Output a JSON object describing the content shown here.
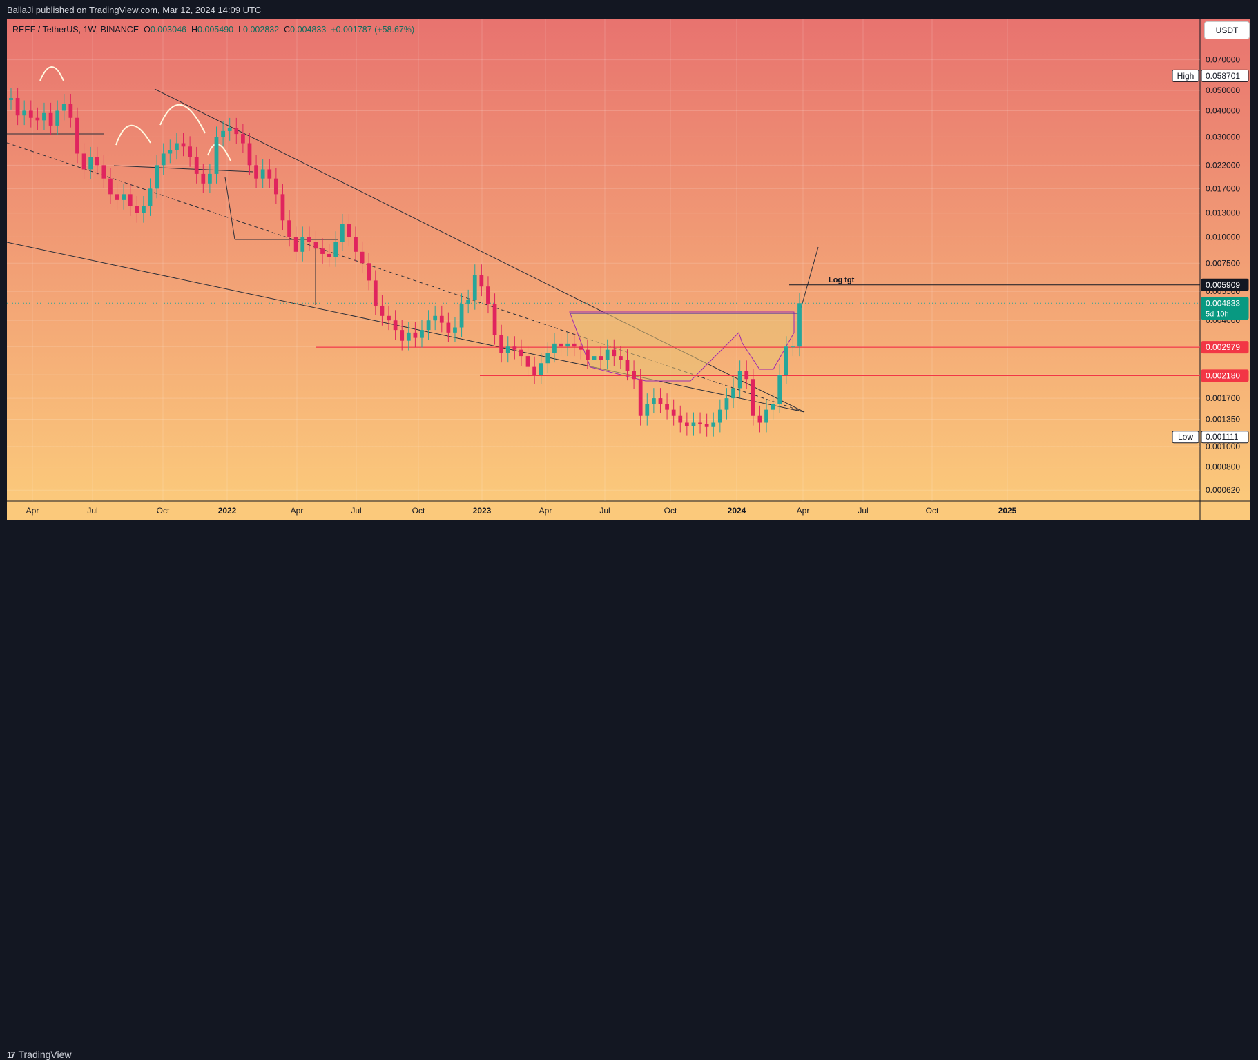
{
  "header": {
    "publisher": "BallaJi published on TradingView.com, Mar 12, 2024 14:09 UTC"
  },
  "symbol": {
    "name": "REEF / TetherUS, 1W, BINANCE",
    "o_label": "O",
    "o_value": "0.003046",
    "h_label": "H",
    "h_value": "0.005490",
    "l_label": "L",
    "l_value": "0.002832",
    "c_label": "C",
    "c_value": "0.004833",
    "change": "+0.001787 (+58.67%)"
  },
  "currency_button": "USDT",
  "footer": {
    "brand": "TradingView",
    "logo_icon": "tradingview-logo-icon"
  },
  "colors": {
    "bg_top": "#e8736f",
    "bg_bottom": "#fbc97b",
    "up": "#26a69a",
    "down": "#e0245e",
    "level_line": "#f23645",
    "cup_fill": "#e8c277",
    "cup_stroke": "#9c27b0"
  },
  "chart_data": {
    "type": "candlestick",
    "scale": "log",
    "ylim": [
      0.00055,
      0.11
    ],
    "y_ticks": [
      "0.070000",
      "0.050000",
      "0.040000",
      "0.030000",
      "0.022000",
      "0.017000",
      "0.013000",
      "0.010000",
      "0.007500",
      "0.005500",
      "0.004000",
      "0.003000",
      "0.002200",
      "0.001700",
      "0.001350",
      "0.001000",
      "0.000800",
      "0.000620"
    ],
    "x_ticks": [
      "Apr",
      "Jul",
      "Oct",
      "2022",
      "Apr",
      "Jul",
      "Oct",
      "2023",
      "Apr",
      "Jul",
      "Oct",
      "2024",
      "Apr",
      "Jul",
      "Oct",
      "2025"
    ],
    "price_labels": [
      {
        "label": "High",
        "value": "0.058701"
      },
      {
        "label": "",
        "value": "0.005909"
      },
      {
        "label": "",
        "value": "0.004833",
        "sub": "5d 10h"
      },
      {
        "label": "",
        "value": "0.002979"
      },
      {
        "label": "",
        "value": "0.002180"
      },
      {
        "label": "Low",
        "value": "0.001111"
      }
    ],
    "annotations": [
      "Log tgt"
    ],
    "levels": [
      0.002979,
      0.00218,
      0.005909
    ],
    "candles": [
      [
        0.045,
        0.046
      ],
      [
        0.046,
        0.038
      ],
      [
        0.038,
        0.04
      ],
      [
        0.04,
        0.037
      ],
      [
        0.037,
        0.036
      ],
      [
        0.036,
        0.039
      ],
      [
        0.039,
        0.034
      ],
      [
        0.034,
        0.04
      ],
      [
        0.04,
        0.043
      ],
      [
        0.043,
        0.037
      ],
      [
        0.037,
        0.025
      ],
      [
        0.025,
        0.021
      ],
      [
        0.021,
        0.024
      ],
      [
        0.024,
        0.022
      ],
      [
        0.022,
        0.019
      ],
      [
        0.019,
        0.016
      ],
      [
        0.016,
        0.015
      ],
      [
        0.015,
        0.016
      ],
      [
        0.016,
        0.014
      ],
      [
        0.014,
        0.013
      ],
      [
        0.013,
        0.014
      ],
      [
        0.014,
        0.017
      ],
      [
        0.017,
        0.022
      ],
      [
        0.022,
        0.025
      ],
      [
        0.025,
        0.026
      ],
      [
        0.026,
        0.028
      ],
      [
        0.028,
        0.027
      ],
      [
        0.027,
        0.024
      ],
      [
        0.024,
        0.02
      ],
      [
        0.02,
        0.018
      ],
      [
        0.018,
        0.02
      ],
      [
        0.02,
        0.03
      ],
      [
        0.03,
        0.032
      ],
      [
        0.032,
        0.033
      ],
      [
        0.033,
        0.031
      ],
      [
        0.031,
        0.028
      ],
      [
        0.028,
        0.022
      ],
      [
        0.022,
        0.019
      ],
      [
        0.019,
        0.021
      ],
      [
        0.021,
        0.019
      ],
      [
        0.019,
        0.016
      ],
      [
        0.016,
        0.012
      ],
      [
        0.012,
        0.01
      ],
      [
        0.01,
        0.0085
      ],
      [
        0.0085,
        0.01
      ],
      [
        0.01,
        0.0095
      ],
      [
        0.0095,
        0.0088
      ],
      [
        0.0088,
        0.0083
      ],
      [
        0.0083,
        0.008
      ],
      [
        0.008,
        0.0095
      ],
      [
        0.0095,
        0.0115
      ],
      [
        0.0115,
        0.01
      ],
      [
        0.01,
        0.0085
      ],
      [
        0.0085,
        0.0075
      ],
      [
        0.0075,
        0.0062
      ],
      [
        0.0062,
        0.0047
      ],
      [
        0.0047,
        0.0042
      ],
      [
        0.0042,
        0.004
      ],
      [
        0.004,
        0.0036
      ],
      [
        0.0036,
        0.0032
      ],
      [
        0.0032,
        0.0035
      ],
      [
        0.0035,
        0.0033
      ],
      [
        0.0033,
        0.0036
      ],
      [
        0.0036,
        0.004
      ],
      [
        0.004,
        0.0042
      ],
      [
        0.0042,
        0.0039
      ],
      [
        0.0039,
        0.0035
      ],
      [
        0.0035,
        0.0037
      ],
      [
        0.0037,
        0.0048
      ],
      [
        0.0048,
        0.005
      ],
      [
        0.005,
        0.0066
      ],
      [
        0.0066,
        0.0058
      ],
      [
        0.0058,
        0.0048
      ],
      [
        0.0048,
        0.0034
      ],
      [
        0.0034,
        0.0028
      ],
      [
        0.0028,
        0.003
      ],
      [
        0.003,
        0.0029
      ],
      [
        0.0029,
        0.0027
      ],
      [
        0.0027,
        0.0024
      ],
      [
        0.0024,
        0.0022
      ],
      [
        0.0022,
        0.0025
      ],
      [
        0.0025,
        0.0028
      ],
      [
        0.0028,
        0.0031
      ],
      [
        0.0031,
        0.003
      ],
      [
        0.003,
        0.0031
      ],
      [
        0.0031,
        0.003
      ],
      [
        0.003,
        0.0029
      ],
      [
        0.0029,
        0.0026
      ],
      [
        0.0026,
        0.0027
      ],
      [
        0.0027,
        0.0026
      ],
      [
        0.0026,
        0.0029
      ],
      [
        0.0029,
        0.0027
      ],
      [
        0.0027,
        0.0026
      ],
      [
        0.0026,
        0.0023
      ],
      [
        0.0023,
        0.0021
      ],
      [
        0.0021,
        0.0014
      ],
      [
        0.0014,
        0.0016
      ],
      [
        0.0016,
        0.0017
      ],
      [
        0.0017,
        0.0016
      ],
      [
        0.0016,
        0.0015
      ],
      [
        0.0015,
        0.0014
      ],
      [
        0.0014,
        0.0013
      ],
      [
        0.0013,
        0.00125
      ],
      [
        0.00125,
        0.0013
      ],
      [
        0.0013,
        0.00128
      ],
      [
        0.00128,
        0.00124
      ],
      [
        0.00124,
        0.0013
      ],
      [
        0.0013,
        0.0015
      ],
      [
        0.0015,
        0.0017
      ],
      [
        0.0017,
        0.0019
      ],
      [
        0.0019,
        0.0023
      ],
      [
        0.0023,
        0.0021
      ],
      [
        0.0021,
        0.0014
      ],
      [
        0.0014,
        0.0013
      ],
      [
        0.0013,
        0.0015
      ],
      [
        0.0015,
        0.0016
      ],
      [
        0.0016,
        0.0022
      ],
      [
        0.0022,
        0.003
      ],
      [
        0.003,
        0.003
      ],
      [
        0.003,
        0.004833
      ]
    ]
  }
}
